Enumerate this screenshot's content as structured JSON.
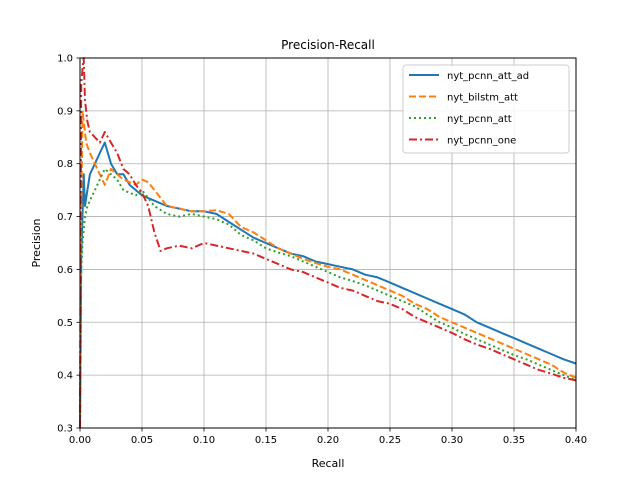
{
  "chart_data": {
    "type": "line",
    "title": "Precision-Recall",
    "xlabel": "Recall",
    "ylabel": "Precision",
    "xlim": [
      0.0,
      0.4
    ],
    "ylim": [
      0.3,
      1.0
    ],
    "xticks": [
      "0.00",
      "0.05",
      "0.10",
      "0.15",
      "0.20",
      "0.25",
      "0.30",
      "0.35",
      "0.40"
    ],
    "yticks": [
      "0.3",
      "0.4",
      "0.5",
      "0.6",
      "0.7",
      "0.8",
      "0.9",
      "1.0"
    ],
    "grid": true,
    "legend_position": "top-right",
    "series": [
      {
        "name": "nyt_pcnn_att_ad",
        "color": "#1f77b4",
        "dash": "solid",
        "points": [
          [
            0.0,
            0.3
          ],
          [
            0.0005,
            0.45
          ],
          [
            0.001,
            0.62
          ],
          [
            0.002,
            0.7
          ],
          [
            0.003,
            0.78
          ],
          [
            0.004,
            0.72
          ],
          [
            0.006,
            0.75
          ],
          [
            0.008,
            0.78
          ],
          [
            0.012,
            0.8
          ],
          [
            0.016,
            0.82
          ],
          [
            0.02,
            0.84
          ],
          [
            0.025,
            0.8
          ],
          [
            0.03,
            0.78
          ],
          [
            0.035,
            0.78
          ],
          [
            0.04,
            0.76
          ],
          [
            0.045,
            0.75
          ],
          [
            0.05,
            0.74
          ],
          [
            0.06,
            0.73
          ],
          [
            0.07,
            0.72
          ],
          [
            0.08,
            0.715
          ],
          [
            0.09,
            0.71
          ],
          [
            0.1,
            0.71
          ],
          [
            0.11,
            0.705
          ],
          [
            0.12,
            0.69
          ],
          [
            0.13,
            0.675
          ],
          [
            0.14,
            0.66
          ],
          [
            0.15,
            0.65
          ],
          [
            0.16,
            0.64
          ],
          [
            0.17,
            0.63
          ],
          [
            0.18,
            0.625
          ],
          [
            0.19,
            0.615
          ],
          [
            0.2,
            0.61
          ],
          [
            0.21,
            0.605
          ],
          [
            0.22,
            0.6
          ],
          [
            0.23,
            0.59
          ],
          [
            0.24,
            0.585
          ],
          [
            0.25,
            0.575
          ],
          [
            0.26,
            0.565
          ],
          [
            0.27,
            0.555
          ],
          [
            0.28,
            0.545
          ],
          [
            0.29,
            0.535
          ],
          [
            0.3,
            0.525
          ],
          [
            0.31,
            0.515
          ],
          [
            0.32,
            0.5
          ],
          [
            0.33,
            0.49
          ],
          [
            0.34,
            0.48
          ],
          [
            0.35,
            0.47
          ],
          [
            0.36,
            0.46
          ],
          [
            0.37,
            0.45
          ],
          [
            0.38,
            0.44
          ],
          [
            0.39,
            0.43
          ],
          [
            0.4,
            0.422
          ]
        ]
      },
      {
        "name": "nyt_bilstm_att",
        "color": "#ff7f0e",
        "dash": "dashed",
        "points": [
          [
            0.0,
            0.3
          ],
          [
            0.0005,
            0.5
          ],
          [
            0.001,
            0.7
          ],
          [
            0.002,
            0.9
          ],
          [
            0.003,
            0.88
          ],
          [
            0.005,
            0.84
          ],
          [
            0.008,
            0.82
          ],
          [
            0.012,
            0.8
          ],
          [
            0.016,
            0.78
          ],
          [
            0.02,
            0.76
          ],
          [
            0.025,
            0.79
          ],
          [
            0.03,
            0.78
          ],
          [
            0.035,
            0.77
          ],
          [
            0.04,
            0.765
          ],
          [
            0.045,
            0.76
          ],
          [
            0.05,
            0.77
          ],
          [
            0.055,
            0.765
          ],
          [
            0.06,
            0.75
          ],
          [
            0.07,
            0.72
          ],
          [
            0.08,
            0.715
          ],
          [
            0.09,
            0.71
          ],
          [
            0.1,
            0.71
          ],
          [
            0.11,
            0.712
          ],
          [
            0.12,
            0.705
          ],
          [
            0.13,
            0.68
          ],
          [
            0.14,
            0.67
          ],
          [
            0.15,
            0.655
          ],
          [
            0.16,
            0.64
          ],
          [
            0.17,
            0.63
          ],
          [
            0.18,
            0.62
          ],
          [
            0.19,
            0.612
          ],
          [
            0.2,
            0.605
          ],
          [
            0.21,
            0.6
          ],
          [
            0.22,
            0.59
          ],
          [
            0.23,
            0.58
          ],
          [
            0.24,
            0.57
          ],
          [
            0.25,
            0.56
          ],
          [
            0.26,
            0.55
          ],
          [
            0.27,
            0.535
          ],
          [
            0.28,
            0.525
          ],
          [
            0.29,
            0.51
          ],
          [
            0.3,
            0.5
          ],
          [
            0.31,
            0.49
          ],
          [
            0.32,
            0.48
          ],
          [
            0.33,
            0.47
          ],
          [
            0.34,
            0.46
          ],
          [
            0.35,
            0.45
          ],
          [
            0.36,
            0.44
          ],
          [
            0.37,
            0.43
          ],
          [
            0.38,
            0.42
          ],
          [
            0.39,
            0.405
          ],
          [
            0.4,
            0.395
          ]
        ]
      },
      {
        "name": "nyt_pcnn_att",
        "color": "#2ca02c",
        "dash": "dotted",
        "points": [
          [
            0.0,
            0.3
          ],
          [
            0.0005,
            0.45
          ],
          [
            0.001,
            0.6
          ],
          [
            0.002,
            0.65
          ],
          [
            0.004,
            0.7
          ],
          [
            0.006,
            0.72
          ],
          [
            0.008,
            0.73
          ],
          [
            0.012,
            0.75
          ],
          [
            0.016,
            0.77
          ],
          [
            0.02,
            0.79
          ],
          [
            0.025,
            0.78
          ],
          [
            0.03,
            0.77
          ],
          [
            0.035,
            0.75
          ],
          [
            0.04,
            0.745
          ],
          [
            0.045,
            0.74
          ],
          [
            0.05,
            0.75
          ],
          [
            0.055,
            0.735
          ],
          [
            0.06,
            0.72
          ],
          [
            0.07,
            0.705
          ],
          [
            0.08,
            0.7
          ],
          [
            0.09,
            0.705
          ],
          [
            0.1,
            0.7
          ],
          [
            0.11,
            0.695
          ],
          [
            0.12,
            0.685
          ],
          [
            0.13,
            0.665
          ],
          [
            0.14,
            0.655
          ],
          [
            0.15,
            0.64
          ],
          [
            0.16,
            0.632
          ],
          [
            0.17,
            0.625
          ],
          [
            0.18,
            0.615
          ],
          [
            0.19,
            0.605
          ],
          [
            0.2,
            0.595
          ],
          [
            0.21,
            0.585
          ],
          [
            0.22,
            0.578
          ],
          [
            0.23,
            0.57
          ],
          [
            0.24,
            0.56
          ],
          [
            0.25,
            0.55
          ],
          [
            0.26,
            0.54
          ],
          [
            0.27,
            0.53
          ],
          [
            0.28,
            0.515
          ],
          [
            0.29,
            0.5
          ],
          [
            0.3,
            0.49
          ],
          [
            0.31,
            0.478
          ],
          [
            0.32,
            0.468
          ],
          [
            0.33,
            0.458
          ],
          [
            0.34,
            0.448
          ],
          [
            0.35,
            0.438
          ],
          [
            0.36,
            0.43
          ],
          [
            0.37,
            0.42
          ],
          [
            0.38,
            0.41
          ],
          [
            0.39,
            0.4
          ],
          [
            0.4,
            0.39
          ]
        ]
      },
      {
        "name": "nyt_pcnn_one",
        "color": "#d62728",
        "dash": "dashdot",
        "points": [
          [
            0.0,
            0.3
          ],
          [
            0.001,
            0.95
          ],
          [
            0.002,
            0.98
          ],
          [
            0.003,
            1.0
          ],
          [
            0.004,
            0.92
          ],
          [
            0.006,
            0.88
          ],
          [
            0.008,
            0.86
          ],
          [
            0.012,
            0.85
          ],
          [
            0.016,
            0.84
          ],
          [
            0.02,
            0.86
          ],
          [
            0.025,
            0.84
          ],
          [
            0.03,
            0.82
          ],
          [
            0.035,
            0.79
          ],
          [
            0.04,
            0.78
          ],
          [
            0.045,
            0.76
          ],
          [
            0.05,
            0.745
          ],
          [
            0.055,
            0.72
          ],
          [
            0.06,
            0.67
          ],
          [
            0.065,
            0.635
          ],
          [
            0.07,
            0.64
          ],
          [
            0.08,
            0.645
          ],
          [
            0.09,
            0.64
          ],
          [
            0.1,
            0.65
          ],
          [
            0.11,
            0.645
          ],
          [
            0.12,
            0.64
          ],
          [
            0.13,
            0.635
          ],
          [
            0.14,
            0.63
          ],
          [
            0.15,
            0.62
          ],
          [
            0.16,
            0.61
          ],
          [
            0.17,
            0.6
          ],
          [
            0.18,
            0.595
          ],
          [
            0.19,
            0.585
          ],
          [
            0.2,
            0.575
          ],
          [
            0.21,
            0.565
          ],
          [
            0.22,
            0.56
          ],
          [
            0.23,
            0.55
          ],
          [
            0.24,
            0.54
          ],
          [
            0.25,
            0.535
          ],
          [
            0.26,
            0.525
          ],
          [
            0.27,
            0.51
          ],
          [
            0.28,
            0.5
          ],
          [
            0.29,
            0.49
          ],
          [
            0.3,
            0.48
          ],
          [
            0.31,
            0.468
          ],
          [
            0.32,
            0.458
          ],
          [
            0.33,
            0.45
          ],
          [
            0.34,
            0.44
          ],
          [
            0.35,
            0.43
          ],
          [
            0.36,
            0.42
          ],
          [
            0.37,
            0.41
          ],
          [
            0.38,
            0.403
          ],
          [
            0.39,
            0.395
          ],
          [
            0.4,
            0.39
          ]
        ]
      }
    ]
  }
}
